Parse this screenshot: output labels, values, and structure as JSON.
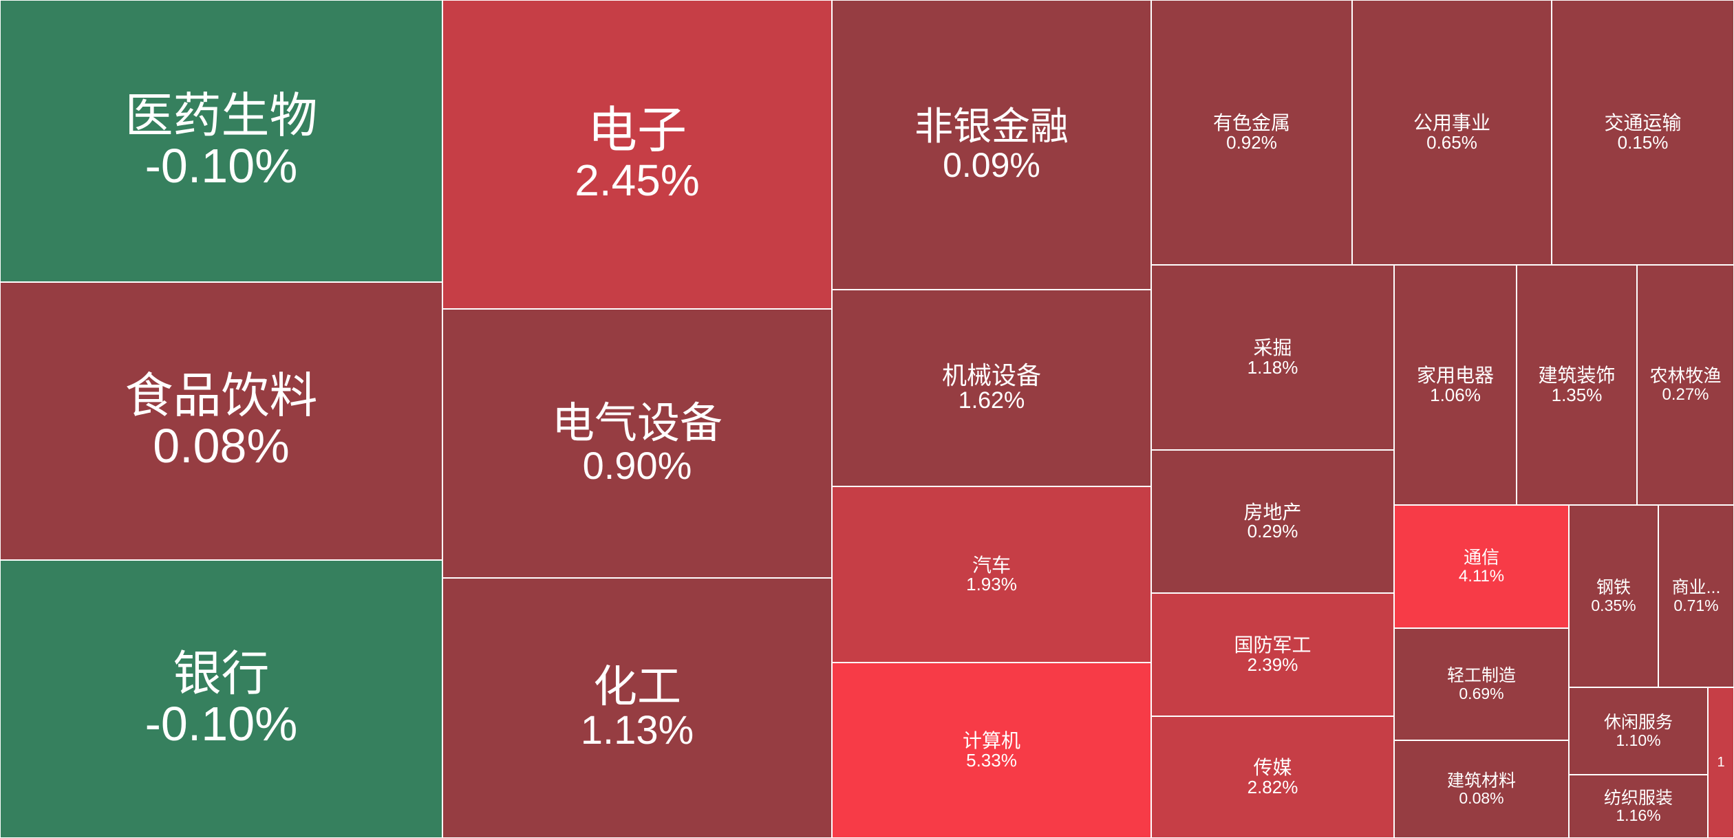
{
  "colors": {
    "green": "#36805e",
    "dark_red": "#963d42",
    "mid_red": "#c63e46",
    "bright_red": "#f73b47",
    "border": "#ffffff",
    "text": "#ffffff"
  },
  "chart_data": {
    "type": "treemap",
    "title": "",
    "items": [
      {
        "name": "医药生物",
        "change": "-0.10%",
        "value": -0.1
      },
      {
        "name": "食品饮料",
        "change": "0.08%",
        "value": 0.08
      },
      {
        "name": "银行",
        "change": "-0.10%",
        "value": -0.1
      },
      {
        "name": "电子",
        "change": "2.45%",
        "value": 2.45
      },
      {
        "name": "电气设备",
        "change": "0.90%",
        "value": 0.9
      },
      {
        "name": "化工",
        "change": "1.13%",
        "value": 1.13
      },
      {
        "name": "非银金融",
        "change": "0.09%",
        "value": 0.09
      },
      {
        "name": "机械设备",
        "change": "1.62%",
        "value": 1.62
      },
      {
        "name": "汽车",
        "change": "1.93%",
        "value": 1.93
      },
      {
        "name": "计算机",
        "change": "5.33%",
        "value": 5.33
      },
      {
        "name": "有色金属",
        "change": "0.92%",
        "value": 0.92
      },
      {
        "name": "公用事业",
        "change": "0.65%",
        "value": 0.65
      },
      {
        "name": "交通运输",
        "change": "0.15%",
        "value": 0.15
      },
      {
        "name": "采掘",
        "change": "1.18%",
        "value": 1.18
      },
      {
        "name": "房地产",
        "change": "0.29%",
        "value": 0.29
      },
      {
        "name": "国防军工",
        "change": "2.39%",
        "value": 2.39
      },
      {
        "name": "传媒",
        "change": "2.82%",
        "value": 2.82
      },
      {
        "name": "家用电器",
        "change": "1.06%",
        "value": 1.06
      },
      {
        "name": "建筑装饰",
        "change": "1.35%",
        "value": 1.35
      },
      {
        "name": "农林牧渔",
        "change": "0.27%",
        "value": 0.27
      },
      {
        "name": "通信",
        "change": "4.11%",
        "value": 4.11
      },
      {
        "name": "钢铁",
        "change": "0.35%",
        "value": 0.35
      },
      {
        "name": "商业...",
        "change": "0.71%",
        "value": 0.71
      },
      {
        "name": "轻工制造",
        "change": "0.69%",
        "value": 0.69
      },
      {
        "name": "建筑材料",
        "change": "0.08%",
        "value": 0.08
      },
      {
        "name": "休闲服务",
        "change": "1.10%",
        "value": 1.1
      },
      {
        "name": "纺织服装",
        "change": "1.16%",
        "value": 1.16
      },
      {
        "name": "1",
        "change": "",
        "value": null
      }
    ]
  }
}
